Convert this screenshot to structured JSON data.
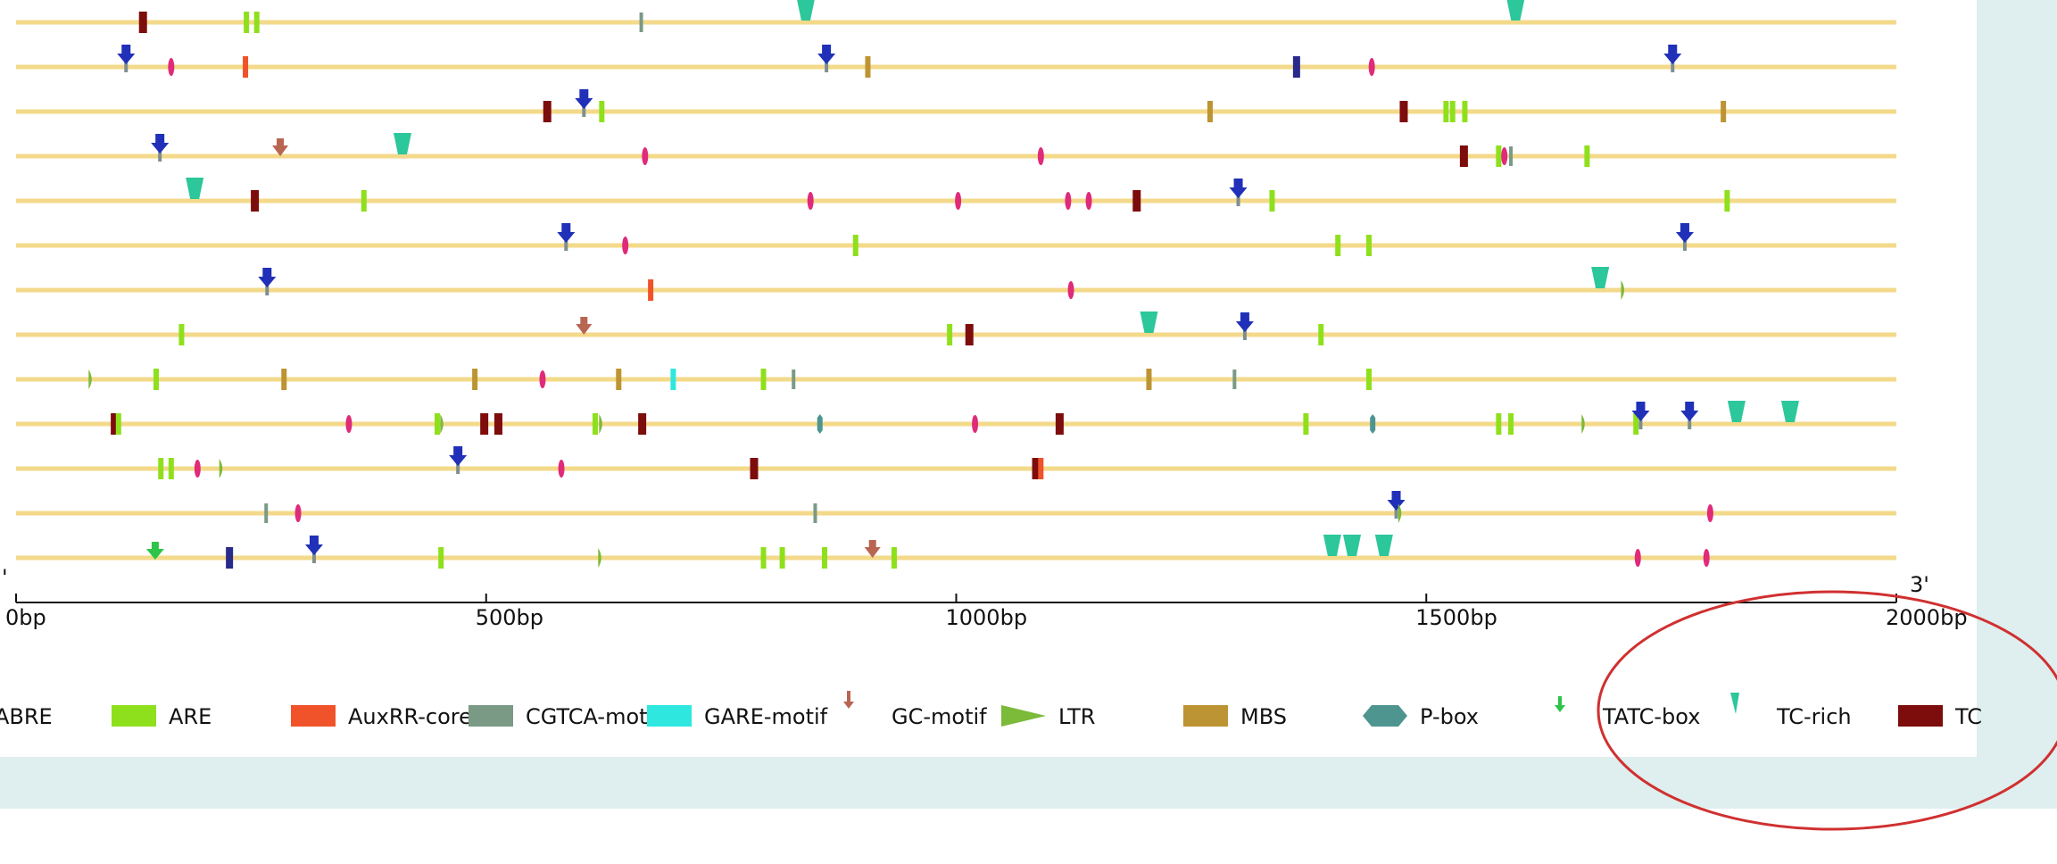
{
  "chart_data": {
    "type": "motif-map",
    "x_axis": {
      "range": [
        0,
        2000
      ],
      "ticks": [
        {
          "value": 0,
          "label": "0bp"
        },
        {
          "value": 500,
          "label": "500bp"
        },
        {
          "value": 1000,
          "label": "1000bp"
        },
        {
          "value": 1500,
          "label": "1500bp"
        },
        {
          "value": 2000,
          "label": "2000bp"
        }
      ],
      "start_label": "'",
      "end_label": "3'"
    },
    "legend": [
      {
        "name": "ABRE",
        "shape": "bar",
        "color": "#1f2ea8"
      },
      {
        "name": "ARE",
        "shape": "bar",
        "color": "#8fe01c"
      },
      {
        "name": "AuxRR-core",
        "shape": "bar",
        "color": "#f0522a"
      },
      {
        "name": "CGTCA-motif",
        "shape": "bar",
        "color": "#7a9a85"
      },
      {
        "name": "GARE-motif",
        "shape": "bar",
        "color": "#2ee8e0"
      },
      {
        "name": "GC-motif",
        "shape": "arrow",
        "color": "#b86652"
      },
      {
        "name": "LTR",
        "shape": "triangle-right",
        "color": "#7cba3a"
      },
      {
        "name": "MBS",
        "shape": "bar",
        "color": "#bd9433"
      },
      {
        "name": "P-box",
        "shape": "hexagon",
        "color": "#4e9590"
      },
      {
        "name": "TATC-box",
        "shape": "arrow",
        "color": "#2ec44a"
      },
      {
        "name": "TC-rich",
        "shape": "trapezoid",
        "color": "#2cc79a"
      },
      {
        "name": "TC",
        "shape": "bar",
        "color": "#7d0c0c"
      }
    ],
    "sequences": [
      {
        "motifs": [
          {
            "pos": 135,
            "type": "TC"
          },
          {
            "pos": 245,
            "type": "ARE"
          },
          {
            "pos": 256,
            "type": "ARE"
          },
          {
            "pos": 665,
            "type": "CGTCA-motif"
          },
          {
            "pos": 840,
            "type": "TC-rich"
          },
          {
            "pos": 1595,
            "type": "TC-rich"
          }
        ]
      },
      {
        "motifs": [
          {
            "pos": 117,
            "type": "ABRE"
          },
          {
            "pos": 165,
            "type": "pink"
          },
          {
            "pos": 244,
            "type": "AuxRR-core"
          },
          {
            "pos": 862,
            "type": "ABRE"
          },
          {
            "pos": 906,
            "type": "MBS"
          },
          {
            "pos": 1362,
            "type": "blue-bar"
          },
          {
            "pos": 1442,
            "type": "pink"
          },
          {
            "pos": 1762,
            "type": "ABRE"
          }
        ]
      },
      {
        "motifs": [
          {
            "pos": 565,
            "type": "TC"
          },
          {
            "pos": 604,
            "type": "ABRE"
          },
          {
            "pos": 623,
            "type": "ARE"
          },
          {
            "pos": 1270,
            "type": "MBS"
          },
          {
            "pos": 1476,
            "type": "TC"
          },
          {
            "pos": 1521,
            "type": "ARE"
          },
          {
            "pos": 1528,
            "type": "ARE"
          },
          {
            "pos": 1541,
            "type": "ARE"
          },
          {
            "pos": 1816,
            "type": "MBS"
          }
        ]
      },
      {
        "motifs": [
          {
            "pos": 153,
            "type": "ABRE"
          },
          {
            "pos": 281,
            "type": "GC-motif"
          },
          {
            "pos": 411,
            "type": "TC-rich"
          },
          {
            "pos": 669,
            "type": "pink"
          },
          {
            "pos": 1090,
            "type": "pink"
          },
          {
            "pos": 1540,
            "type": "TC"
          },
          {
            "pos": 1577,
            "type": "ARE"
          },
          {
            "pos": 1583,
            "type": "pink"
          },
          {
            "pos": 1590,
            "type": "CGTCA-motif"
          },
          {
            "pos": 1671,
            "type": "ARE"
          }
        ]
      },
      {
        "motifs": [
          {
            "pos": 190,
            "type": "TC-rich"
          },
          {
            "pos": 254,
            "type": "TC"
          },
          {
            "pos": 370,
            "type": "ARE"
          },
          {
            "pos": 845,
            "type": "pink"
          },
          {
            "pos": 1002,
            "type": "pink"
          },
          {
            "pos": 1119,
            "type": "pink"
          },
          {
            "pos": 1141,
            "type": "pink"
          },
          {
            "pos": 1192,
            "type": "TC"
          },
          {
            "pos": 1300,
            "type": "ABRE"
          },
          {
            "pos": 1336,
            "type": "ARE"
          },
          {
            "pos": 1820,
            "type": "ARE"
          }
        ]
      },
      {
        "motifs": [
          {
            "pos": 585,
            "type": "ABRE"
          },
          {
            "pos": 648,
            "type": "pink"
          },
          {
            "pos": 893,
            "type": "ARE"
          },
          {
            "pos": 1406,
            "type": "ARE"
          },
          {
            "pos": 1439,
            "type": "ARE"
          },
          {
            "pos": 1775,
            "type": "ABRE"
          }
        ]
      },
      {
        "motifs": [
          {
            "pos": 267,
            "type": "ABRE"
          },
          {
            "pos": 675,
            "type": "AuxRR-core"
          },
          {
            "pos": 1122,
            "type": "pink"
          },
          {
            "pos": 1685,
            "type": "TC-rich"
          },
          {
            "pos": 1710,
            "type": "LTR"
          }
        ]
      },
      {
        "motifs": [
          {
            "pos": 176,
            "type": "ARE"
          },
          {
            "pos": 604,
            "type": "GC-motif"
          },
          {
            "pos": 993,
            "type": "ARE"
          },
          {
            "pos": 1014,
            "type": "TC"
          },
          {
            "pos": 1205,
            "type": "TC-rich"
          },
          {
            "pos": 1307,
            "type": "ABRE"
          },
          {
            "pos": 1388,
            "type": "ARE"
          }
        ]
      },
      {
        "motifs": [
          {
            "pos": 80,
            "type": "LTR"
          },
          {
            "pos": 149,
            "type": "ARE"
          },
          {
            "pos": 285,
            "type": "MBS"
          },
          {
            "pos": 488,
            "type": "MBS"
          },
          {
            "pos": 560,
            "type": "pink"
          },
          {
            "pos": 641,
            "type": "MBS"
          },
          {
            "pos": 699,
            "type": "GARE-motif"
          },
          {
            "pos": 795,
            "type": "ARE"
          },
          {
            "pos": 827,
            "type": "CGTCA-motif"
          },
          {
            "pos": 1205,
            "type": "MBS"
          },
          {
            "pos": 1296,
            "type": "CGTCA-motif"
          },
          {
            "pos": 1439,
            "type": "ARE"
          }
        ]
      },
      {
        "motifs": [
          {
            "pos": 105,
            "type": "TC"
          },
          {
            "pos": 109,
            "type": "ARE"
          },
          {
            "pos": 354,
            "type": "pink"
          },
          {
            "pos": 448,
            "type": "ARE"
          },
          {
            "pos": 454,
            "type": "LTR"
          },
          {
            "pos": 498,
            "type": "TC"
          },
          {
            "pos": 513,
            "type": "TC"
          },
          {
            "pos": 616,
            "type": "ARE"
          },
          {
            "pos": 623,
            "type": "LTR"
          },
          {
            "pos": 666,
            "type": "TC"
          },
          {
            "pos": 855,
            "type": "P-box"
          },
          {
            "pos": 1020,
            "type": "pink"
          },
          {
            "pos": 1110,
            "type": "TC"
          },
          {
            "pos": 1372,
            "type": "ARE"
          },
          {
            "pos": 1443,
            "type": "P-box"
          },
          {
            "pos": 1577,
            "type": "ARE"
          },
          {
            "pos": 1590,
            "type": "ARE"
          },
          {
            "pos": 1668,
            "type": "LTR"
          },
          {
            "pos": 1723,
            "type": "ARE"
          },
          {
            "pos": 1728,
            "type": "ABRE"
          },
          {
            "pos": 1780,
            "type": "ABRE"
          },
          {
            "pos": 1830,
            "type": "TC-rich"
          },
          {
            "pos": 1887,
            "type": "TC-rich"
          }
        ]
      },
      {
        "motifs": [
          {
            "pos": 154,
            "type": "ARE"
          },
          {
            "pos": 165,
            "type": "ARE"
          },
          {
            "pos": 193,
            "type": "pink"
          },
          {
            "pos": 219,
            "type": "LTR"
          },
          {
            "pos": 470,
            "type": "ABRE"
          },
          {
            "pos": 580,
            "type": "pink"
          },
          {
            "pos": 785,
            "type": "TC"
          },
          {
            "pos": 1085,
            "type": "TC"
          },
          {
            "pos": 1090,
            "type": "AuxRR-core"
          }
        ]
      },
      {
        "motifs": [
          {
            "pos": 266,
            "type": "CGTCA-motif"
          },
          {
            "pos": 300,
            "type": "pink"
          },
          {
            "pos": 850,
            "type": "CGTCA-motif"
          },
          {
            "pos": 1468,
            "type": "ABRE"
          },
          {
            "pos": 1473,
            "type": "LTR"
          },
          {
            "pos": 1802,
            "type": "pink"
          }
        ]
      },
      {
        "motifs": [
          {
            "pos": 148,
            "type": "TATC-box"
          },
          {
            "pos": 227,
            "type": "blue-bar"
          },
          {
            "pos": 317,
            "type": "ABRE"
          },
          {
            "pos": 452,
            "type": "ARE"
          },
          {
            "pos": 622,
            "type": "LTR"
          },
          {
            "pos": 795,
            "type": "ARE"
          },
          {
            "pos": 815,
            "type": "ARE"
          },
          {
            "pos": 860,
            "type": "ARE"
          },
          {
            "pos": 911,
            "type": "GC-motif"
          },
          {
            "pos": 934,
            "type": "ARE"
          },
          {
            "pos": 1400,
            "type": "TC-rich"
          },
          {
            "pos": 1421,
            "type": "TC-rich"
          },
          {
            "pos": 1455,
            "type": "TC-rich"
          },
          {
            "pos": 1725,
            "type": "pink"
          },
          {
            "pos": 1798,
            "type": "pink"
          }
        ]
      }
    ]
  }
}
